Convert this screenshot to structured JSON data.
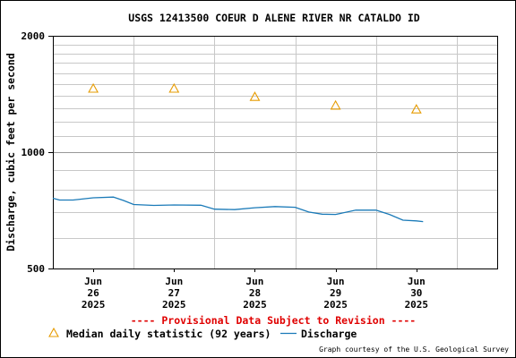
{
  "chart_data": {
    "type": "line",
    "title": "USGS 12413500 COEUR D ALENE RIVER NR CATALDO ID",
    "ylabel": "Discharge, cubic feet per second",
    "xlabel": "",
    "y_scale": "log",
    "ylim": [
      500,
      2000
    ],
    "y_major_ticks": [
      "500",
      "1000",
      "2000"
    ],
    "x_range": [
      "2025-06-25T12:00",
      "2025-07-01T00:00"
    ],
    "x_ticks": [
      {
        "month": "Jun",
        "day": "26",
        "year": "2025"
      },
      {
        "month": "Jun",
        "day": "27",
        "year": "2025"
      },
      {
        "month": "Jun",
        "day": "28",
        "year": "2025"
      },
      {
        "month": "Jun",
        "day": "29",
        "year": "2025"
      },
      {
        "month": "Jun",
        "day": "30",
        "year": "2025"
      }
    ],
    "grid": true,
    "legend_position": "bottom-left",
    "series": [
      {
        "name": "Median daily statistic (92 years)",
        "kind": "marker",
        "marker": "triangle",
        "color": "#e69b00",
        "x": [
          "2025-06-26T00:00",
          "2025-06-27T00:00",
          "2025-06-28T00:00",
          "2025-06-29T00:00",
          "2025-06-30T00:00"
        ],
        "y": [
          1460,
          1460,
          1390,
          1320,
          1290
        ]
      },
      {
        "name": "Discharge",
        "kind": "line",
        "color": "#1a7ab8",
        "x": [
          "2025-06-25T12:00",
          "2025-06-25T14:00",
          "2025-06-25T18:00",
          "2025-06-26T00:00",
          "2025-06-26T06:00",
          "2025-06-26T09:00",
          "2025-06-26T12:00",
          "2025-06-26T18:00",
          "2025-06-27T00:00",
          "2025-06-27T08:00",
          "2025-06-27T12:00",
          "2025-06-27T18:00",
          "2025-06-28T00:00",
          "2025-06-28T06:00",
          "2025-06-28T12:00",
          "2025-06-28T16:00",
          "2025-06-28T20:00",
          "2025-06-29T00:00",
          "2025-06-29T06:00",
          "2025-06-29T12:00",
          "2025-06-29T16:00",
          "2025-06-29T20:00",
          "2025-06-30T00:00",
          "2025-06-30T02:00"
        ],
        "y": [
          760,
          752,
          752,
          762,
          765,
          750,
          732,
          728,
          730,
          729,
          712,
          710,
          718,
          723,
          720,
          700,
          691,
          690,
          708,
          708,
          690,
          667,
          664,
          661
        ]
      }
    ],
    "notices": {
      "provisional": "---- Provisional Data Subject to Revision ----",
      "courtesy": "Graph courtesy of the U.S. Geological Survey"
    },
    "colors": {
      "provisional": "#e00000",
      "grid": "#c8c8c8",
      "axis": "#000000"
    }
  }
}
